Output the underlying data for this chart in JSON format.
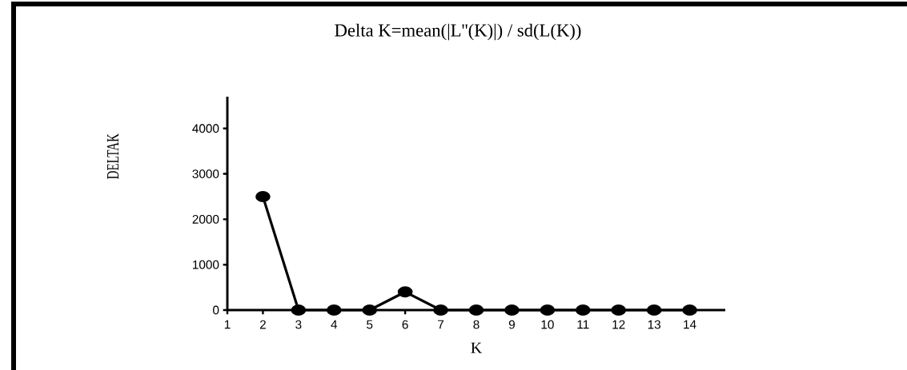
{
  "chart_data": {
    "type": "line",
    "title": "Delta K=mean(|L''(K)|) / sd(L(K))",
    "xlabel": "K",
    "ylabel": "DELTAK",
    "x": [
      2,
      3,
      4,
      5,
      6,
      7,
      8,
      9,
      10,
      11,
      12,
      13,
      14
    ],
    "values": [
      2500,
      0,
      0,
      0,
      400,
      0,
      0,
      0,
      0,
      0,
      0,
      0,
      0
    ],
    "color": "#000000",
    "marker": "circle",
    "line_style": "solid",
    "grid": false,
    "xlim": [
      1,
      15
    ],
    "xticks": [
      1,
      2,
      3,
      4,
      5,
      6,
      7,
      8,
      9,
      10,
      11,
      12,
      13,
      14
    ],
    "ylim": [
      0,
      4700
    ],
    "yticks": [
      0,
      1000,
      2000,
      3000,
      4000
    ]
  }
}
